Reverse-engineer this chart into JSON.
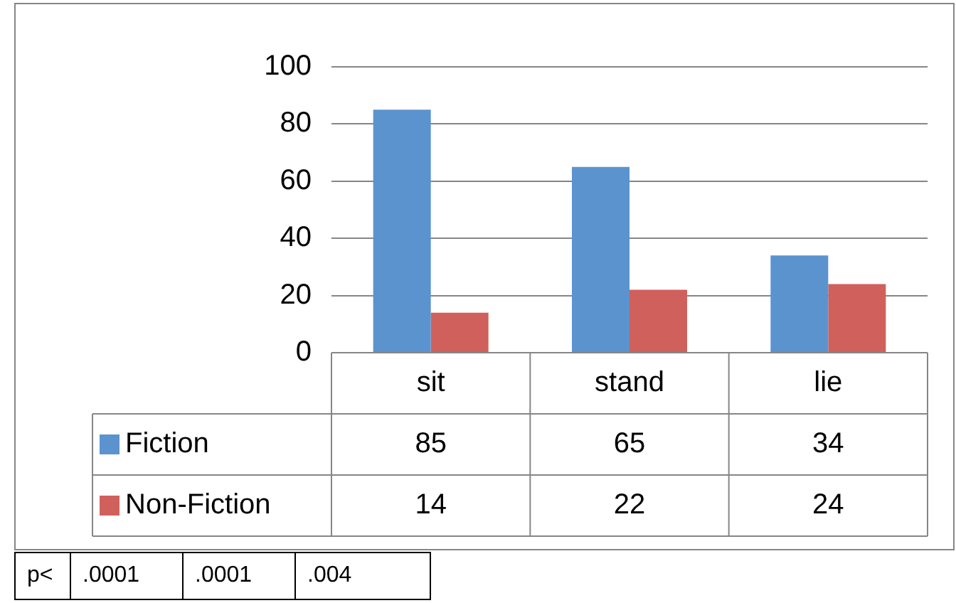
{
  "chart_data": {
    "type": "bar",
    "categories": [
      "sit",
      "stand",
      "lie"
    ],
    "series": [
      {
        "name": "Fiction",
        "color": "#5b93cf",
        "values": [
          85,
          65,
          34
        ]
      },
      {
        "name": "Non-Fiction",
        "color": "#d0605c",
        "values": [
          14,
          22,
          24
        ]
      }
    ],
    "ylim": [
      0,
      100
    ],
    "yticks": [
      0,
      20,
      40,
      60,
      80,
      100
    ],
    "grid": "y",
    "legend": "bottom",
    "data_labels": true,
    "annotations": [
      "p<",
      ".0001",
      ".0001",
      ".004"
    ]
  }
}
